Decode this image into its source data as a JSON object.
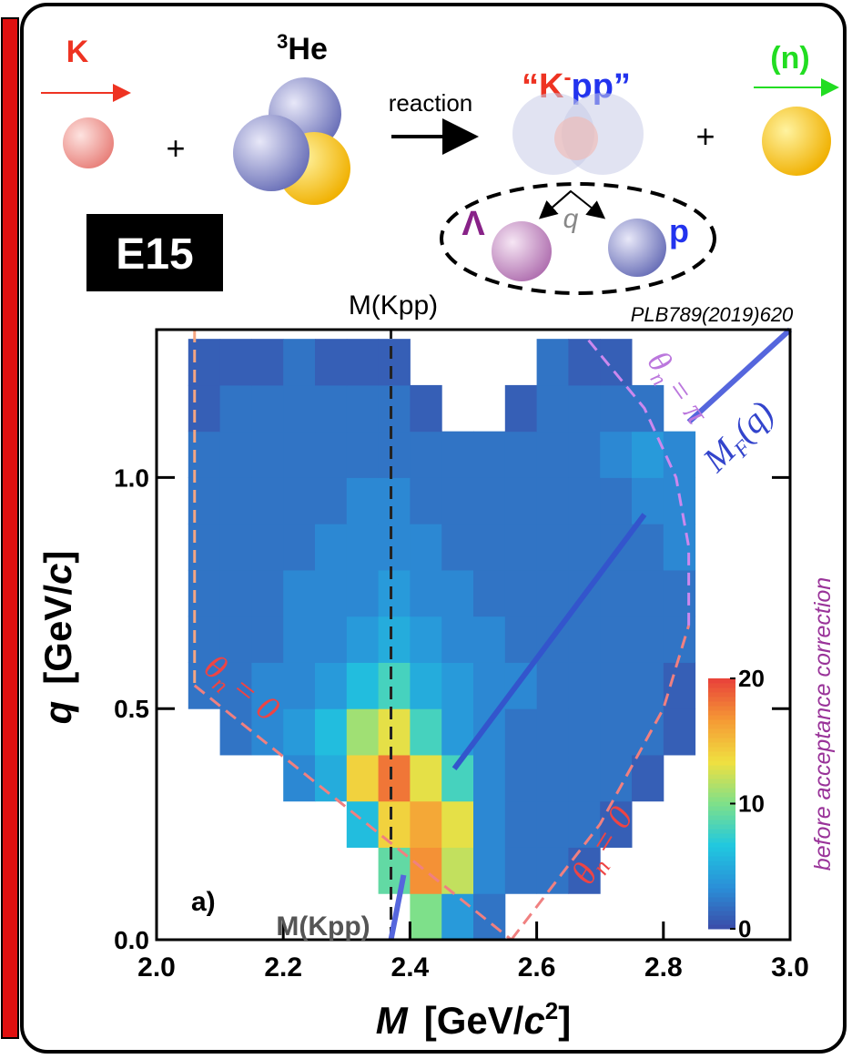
{
  "diagram": {
    "kaon": "K",
    "helium_mass": "3",
    "helium": "He",
    "reaction": "reaction",
    "kpp_open": "“K",
    "kpp_charge": "-",
    "kpp_close": "pp”",
    "neutron": "(n)",
    "plus_1": "+",
    "plus_2": "+",
    "lambda": "Λ",
    "q": "q",
    "proton": "p",
    "experiment": "E15"
  },
  "chart_data": {
    "type": "heatmap",
    "annotation_top": "M(Kpp)",
    "reference": "PLB789(2019)620",
    "panel": "a)",
    "annotation_bottom": "M(Kpp)",
    "side_note": "before acceptance correction",
    "theta_left": [
      "θ",
      "n",
      "= 0"
    ],
    "theta_right": [
      "θ",
      "n",
      "= 0"
    ],
    "theta_pi": [
      "θ",
      "n",
      "= π"
    ],
    "mf": [
      "M",
      "F",
      "(q)"
    ],
    "xlabel": [
      "M",
      "[GeV/",
      "c",
      "2",
      "]"
    ],
    "ylabel": [
      "q",
      "[GeV/",
      "c",
      "]"
    ],
    "xbins": [
      2.0,
      2.05,
      2.1,
      2.15,
      2.2,
      2.25,
      2.3,
      2.35,
      2.4,
      2.45,
      2.5,
      2.55,
      2.6,
      2.65,
      2.7,
      2.75,
      2.8,
      2.85,
      2.9,
      2.95,
      3.0
    ],
    "ybins": [
      0,
      0.1,
      0.2,
      0.3,
      0.4,
      0.5,
      0.6,
      0.7,
      0.8,
      0.9,
      1.0,
      1.1,
      1.2,
      1.3
    ],
    "values": [
      [
        null,
        null,
        null,
        null,
        null,
        null,
        null,
        null,
        10,
        4,
        2,
        null,
        null,
        null,
        null,
        null,
        null,
        null,
        null,
        null
      ],
      [
        null,
        null,
        null,
        null,
        null,
        null,
        null,
        9,
        17,
        12,
        3,
        2,
        2,
        1,
        null,
        null,
        null,
        null,
        null,
        null
      ],
      [
        null,
        null,
        null,
        null,
        null,
        null,
        6,
        14,
        16,
        13,
        3,
        2,
        2,
        2,
        1,
        null,
        null,
        null,
        null,
        null
      ],
      [
        null,
        null,
        null,
        null,
        3,
        5,
        14,
        18,
        13,
        8,
        3,
        2,
        2,
        2,
        2,
        1,
        null,
        null,
        null,
        null
      ],
      [
        null,
        null,
        2,
        3,
        4,
        6,
        11,
        13,
        8,
        4,
        3,
        2,
        2,
        2,
        2,
        2,
        1,
        null,
        null,
        null
      ],
      [
        null,
        2,
        2,
        3,
        3,
        4,
        6,
        8,
        5,
        4,
        3,
        3,
        2,
        2,
        2,
        2,
        1,
        null,
        null,
        null
      ],
      [
        null,
        2,
        2,
        2,
        3,
        3,
        4,
        5,
        4,
        3,
        3,
        2,
        2,
        2,
        2,
        2,
        2,
        null,
        null,
        null
      ],
      [
        null,
        2,
        2,
        2,
        3,
        3,
        3,
        4,
        3,
        3,
        2,
        2,
        2,
        2,
        2,
        2,
        2,
        null,
        null,
        null
      ],
      [
        null,
        2,
        2,
        2,
        2,
        3,
        3,
        3,
        3,
        2,
        2,
        2,
        2,
        2,
        2,
        2,
        3,
        null,
        null,
        null
      ],
      [
        null,
        2,
        2,
        2,
        2,
        2,
        3,
        3,
        2,
        2,
        2,
        2,
        2,
        2,
        2,
        3,
        3,
        null,
        null,
        null
      ],
      [
        null,
        2,
        2,
        2,
        2,
        2,
        2,
        2,
        2,
        2,
        2,
        2,
        2,
        2,
        3,
        4,
        3,
        null,
        null,
        null
      ],
      [
        null,
        1,
        2,
        2,
        2,
        2,
        2,
        2,
        1,
        null,
        null,
        1,
        2,
        2,
        2,
        2,
        null,
        null,
        null,
        null
      ],
      [
        null,
        1,
        1,
        1,
        2,
        1,
        1,
        1,
        null,
        null,
        null,
        null,
        2,
        1,
        1,
        null,
        null,
        null,
        null,
        null
      ]
    ],
    "colormap": [
      "#3b4ba8",
      "#2a8fd8",
      "#20c8e0",
      "#7ee08a",
      "#f0e040",
      "#f59a35",
      "#e8403a"
    ],
    "clim": [
      0,
      20
    ],
    "cticks": [
      0,
      10,
      20
    ],
    "xlim": [
      2.0,
      3.0
    ],
    "ylim": [
      0,
      1.32
    ],
    "xticks": [
      {
        "value": 2.0,
        "label": "2.0"
      },
      2.2,
      2.4,
      2.6,
      2.8,
      {
        "value": 3.0,
        "label": "3.0"
      }
    ],
    "yticks": [
      {
        "value": 0,
        "label": "0.0"
      },
      0.5,
      {
        "value": 1.0,
        "label": "1.0"
      }
    ],
    "lines": [
      {
        "color": "#222222",
        "dash": true,
        "x": [
          2.37,
          2.37
        ],
        "y": [
          0,
          1.32
        ]
      },
      {
        "color": "#f4a582",
        "dash": true,
        "x": [
          2.06,
          2.06
        ],
        "y": [
          1.32,
          0.55
        ]
      },
      {
        "color": "#f08080",
        "dash": true,
        "x": [
          2.06,
          2.56
        ],
        "y": [
          0.55,
          0
        ]
      },
      {
        "color": "#f08080",
        "dash": true,
        "x": [
          2.56,
          2.7,
          2.8,
          2.84
        ],
        "y": [
          0,
          0.25,
          0.5,
          0.68
        ]
      },
      {
        "color": "#cc88ee",
        "dash": true,
        "x": [
          2.84,
          2.84,
          2.82,
          2.77,
          2.68
        ],
        "y": [
          0.68,
          0.85,
          1.0,
          1.15,
          1.3
        ]
      },
      {
        "color": "#3355cc",
        "dash": false,
        "x": [
          2.47,
          2.77
        ],
        "y": [
          0.37,
          0.92
        ]
      },
      {
        "color": "#5566dd",
        "dash": false,
        "x": [
          2.84,
          3.0
        ],
        "y": [
          1.12,
          1.32
        ]
      },
      {
        "color": "#5566dd",
        "dash": false,
        "x": [
          2.37,
          2.38,
          2.39
        ],
        "y": [
          0,
          0.07,
          0.14
        ]
      }
    ]
  }
}
